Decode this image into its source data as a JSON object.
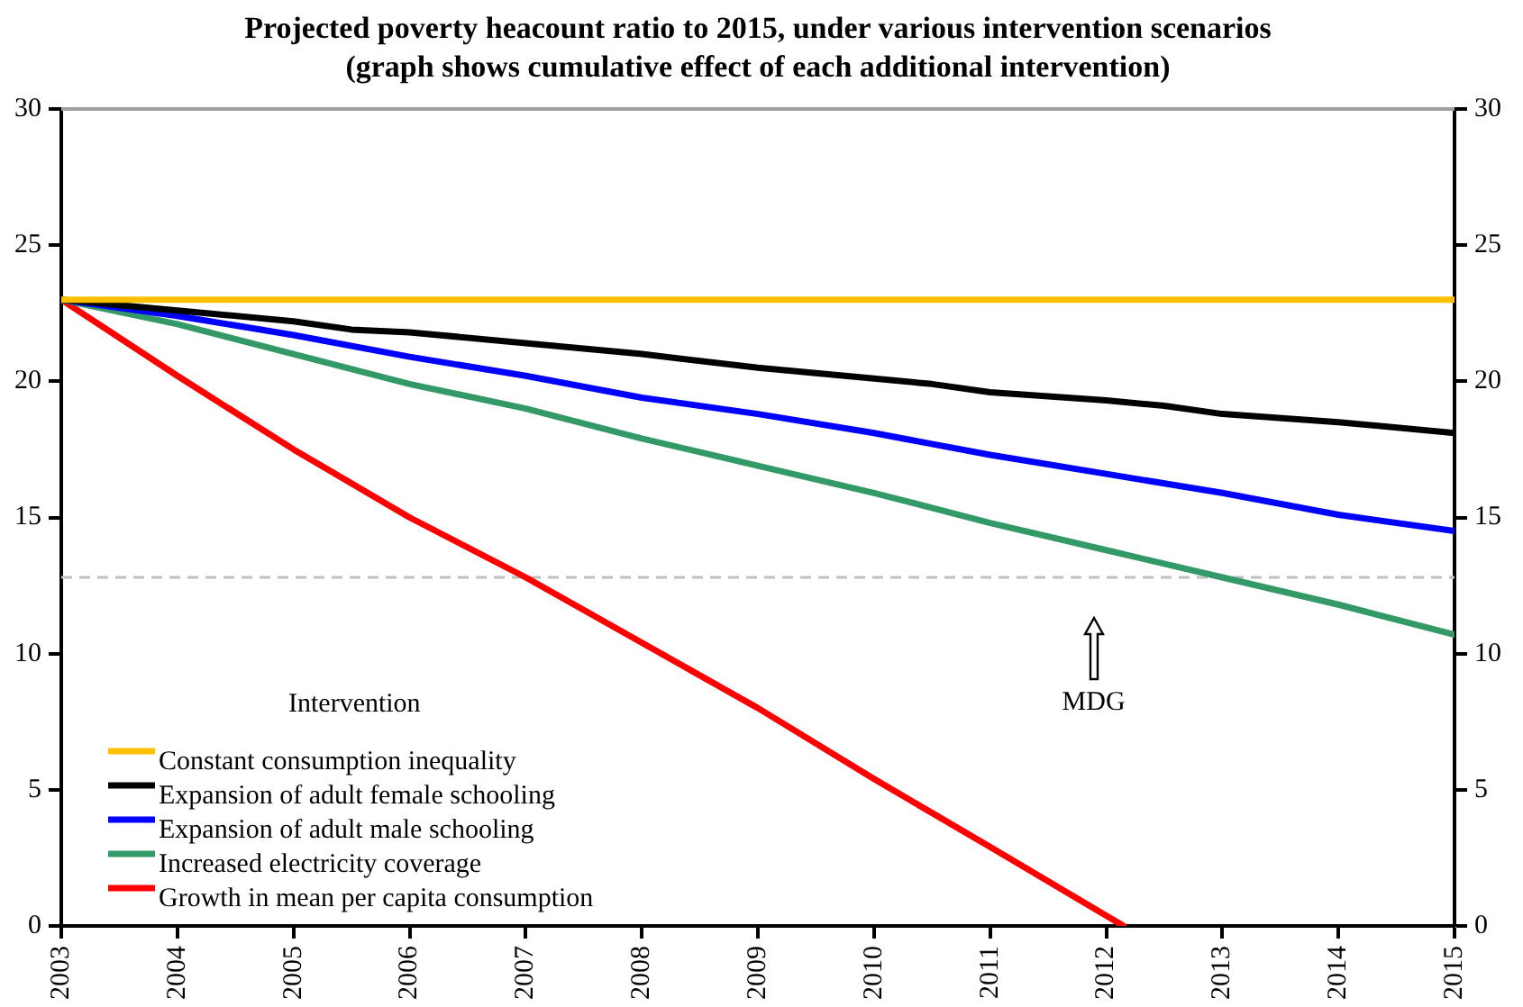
{
  "chart_data": {
    "type": "line",
    "title": "Projected poverty heacount ratio to 2015, under various intervention scenarios (graph shows cumulative effect of each additional intervention)",
    "legend_title": "Intervention",
    "legend": "bottom left",
    "grid": false,
    "marker": "none",
    "line_style": "solid",
    "x": [
      2003,
      2004,
      2005,
      2006,
      2007,
      2008,
      2009,
      2010,
      2011,
      2012,
      2013,
      2014,
      2015
    ],
    "xlim": [
      2003,
      2015
    ],
    "xticks": [
      2003,
      2004,
      2005,
      2006,
      2007,
      2008,
      2009,
      2010,
      2011,
      2012,
      2013,
      2014,
      2015
    ],
    "ylim": [
      0,
      30
    ],
    "yticks": [
      0,
      5,
      10,
      15,
      20,
      25,
      30
    ],
    "y2lim": [
      0,
      30
    ],
    "y2ticks": [
      0,
      5,
      10,
      15,
      20,
      25,
      30
    ],
    "series": [
      {
        "name": "Constant consumption inequality",
        "color": "#ffc000",
        "values": [
          23,
          23,
          23,
          23,
          23,
          23,
          23,
          23,
          23,
          23,
          23,
          23,
          23
        ]
      },
      {
        "name": "Expansion of adult female schooling",
        "color": "#000000",
        "x": [
          2003,
          2004,
          2005,
          2005.5,
          2006,
          2007,
          2008,
          2009,
          2010,
          2010.5,
          2011,
          2012,
          2012.5,
          2013,
          2014,
          2015
        ],
        "values": [
          23,
          22.6,
          22.2,
          21.9,
          21.8,
          21.4,
          21.0,
          20.5,
          20.1,
          19.9,
          19.6,
          19.3,
          19.1,
          18.8,
          18.5,
          18.1
        ]
      },
      {
        "name": "Expansion of adult male schooling",
        "color": "#0000ff",
        "values": [
          23,
          22.4,
          21.7,
          20.9,
          20.2,
          19.4,
          18.8,
          18.1,
          17.3,
          16.6,
          15.9,
          15.1,
          14.5
        ]
      },
      {
        "name": "Increased electricity coverage",
        "color": "#339966",
        "values": [
          23,
          22.1,
          21.0,
          19.9,
          19.0,
          17.9,
          16.9,
          15.9,
          14.8,
          13.8,
          12.8,
          11.8,
          10.7
        ]
      },
      {
        "name": "Growth in mean per capita consumption",
        "color": "#ff0000",
        "x": [
          2003,
          2004,
          2005,
          2006,
          2007,
          2008,
          2009,
          2010,
          2011,
          2012.15
        ],
        "values": [
          23,
          20.2,
          17.5,
          15.0,
          12.8,
          10.4,
          8.0,
          5.4,
          2.9,
          0
        ]
      }
    ],
    "ref_lines": [
      {
        "axis": "y",
        "value": 12.8,
        "color": "#c0c0c0",
        "line_style": "dashed"
      }
    ],
    "annotations": [
      "MDG"
    ]
  }
}
